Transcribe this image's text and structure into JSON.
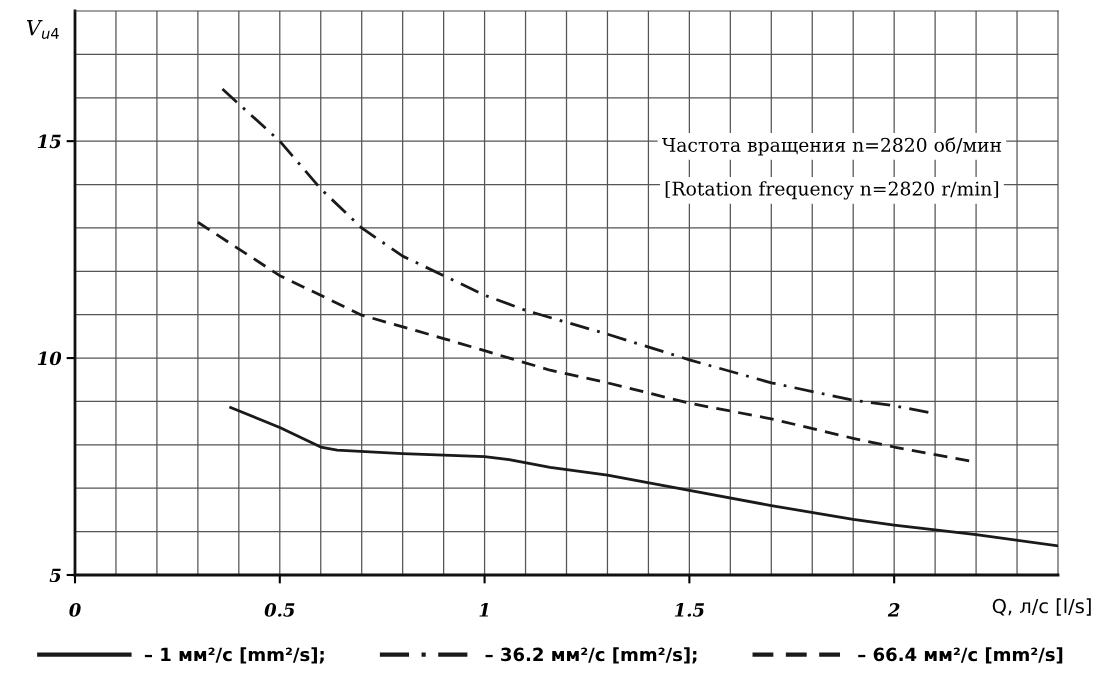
{
  "chart_data": {
    "type": "line",
    "ylabel": "V$_{u4}$",
    "xlabel": "Q, л/с [l/s]",
    "annotations": [
      "Частота вращения n=2820 об/мин",
      "[Rotation frequency n=2820 r/min]"
    ],
    "xlim": [
      0,
      2.4
    ],
    "ylim": [
      5,
      18
    ],
    "xticks": [
      0,
      {
        "value": 0.1,
        "label": null
      },
      {
        "value": 0.2,
        "label": null
      },
      {
        "value": 0.3,
        "label": null
      },
      {
        "value": 0.4,
        "label": null
      },
      0.5,
      {
        "value": 0.6,
        "label": null
      },
      {
        "value": 0.7,
        "label": null
      },
      {
        "value": 0.8,
        "label": null
      },
      {
        "value": 0.9,
        "label": null
      },
      1,
      {
        "value": 1.1,
        "label": null
      },
      {
        "value": 1.2,
        "label": null
      },
      {
        "value": 1.3,
        "label": null
      },
      {
        "value": 1.4,
        "label": null
      },
      1.5,
      {
        "value": 1.6,
        "label": null
      },
      {
        "value": 1.7,
        "label": null
      },
      {
        "value": 1.8,
        "label": null
      },
      {
        "value": 1.9,
        "label": null
      },
      2,
      {
        "value": 2.1,
        "label": null
      },
      {
        "value": 2.2,
        "label": null
      },
      {
        "value": 2.3,
        "label": null
      }
    ],
    "yticks": [
      5,
      {
        "value": 6,
        "label": null
      },
      {
        "value": 7,
        "label": null
      },
      {
        "value": 8,
        "label": null
      },
      {
        "value": 9,
        "label": null
      },
      10,
      {
        "value": 11,
        "label": null
      },
      {
        "value": 12,
        "label": null
      },
      {
        "value": 13,
        "label": null
      },
      {
        "value": 14,
        "label": null
      },
      15,
      {
        "value": 16,
        "label": null
      },
      {
        "value": 17,
        "label": null
      }
    ],
    "grid": true,
    "legend": "bottom",
    "marker": "none",
    "series": [
      {
        "name": "– 1 мм²/с [mm²/s];",
        "color": "#1a1a1a",
        "line_style": "solid",
        "x": [
          0.38,
          0.5,
          0.6,
          0.64,
          0.8,
          1.0,
          1.06,
          1.16,
          1.3,
          1.5,
          1.7,
          1.9,
          2.0,
          2.2,
          2.4
        ],
        "values": [
          8.86,
          8.4,
          7.95,
          7.88,
          7.8,
          7.73,
          7.66,
          7.48,
          7.3,
          6.95,
          6.6,
          6.28,
          6.15,
          5.93,
          5.67
        ]
      },
      {
        "name": "– 36.2 мм²/с [mm²/s];",
        "color": "#1a1a1a",
        "line_style": "dashdot",
        "x": [
          0.36,
          0.5,
          0.6,
          0.7,
          0.8,
          0.9,
          1.0,
          1.1,
          1.3,
          1.5,
          1.7,
          1.9,
          2.0,
          2.1
        ],
        "values": [
          16.2,
          15.0,
          13.9,
          13.0,
          12.35,
          11.9,
          11.45,
          11.1,
          10.55,
          9.96,
          9.43,
          9.03,
          8.9,
          8.72
        ]
      },
      {
        "name": "– 66.4 мм²/с [mm²/s]",
        "color": "#1a1a1a",
        "line_style": "dashed",
        "x": [
          0.3,
          0.5,
          0.7,
          0.9,
          1.0,
          1.16,
          1.3,
          1.5,
          1.7,
          1.9,
          2.0,
          2.2
        ],
        "values": [
          13.13,
          11.9,
          10.99,
          10.45,
          10.17,
          9.72,
          9.43,
          8.96,
          8.6,
          8.15,
          7.95,
          7.6
        ]
      }
    ]
  }
}
